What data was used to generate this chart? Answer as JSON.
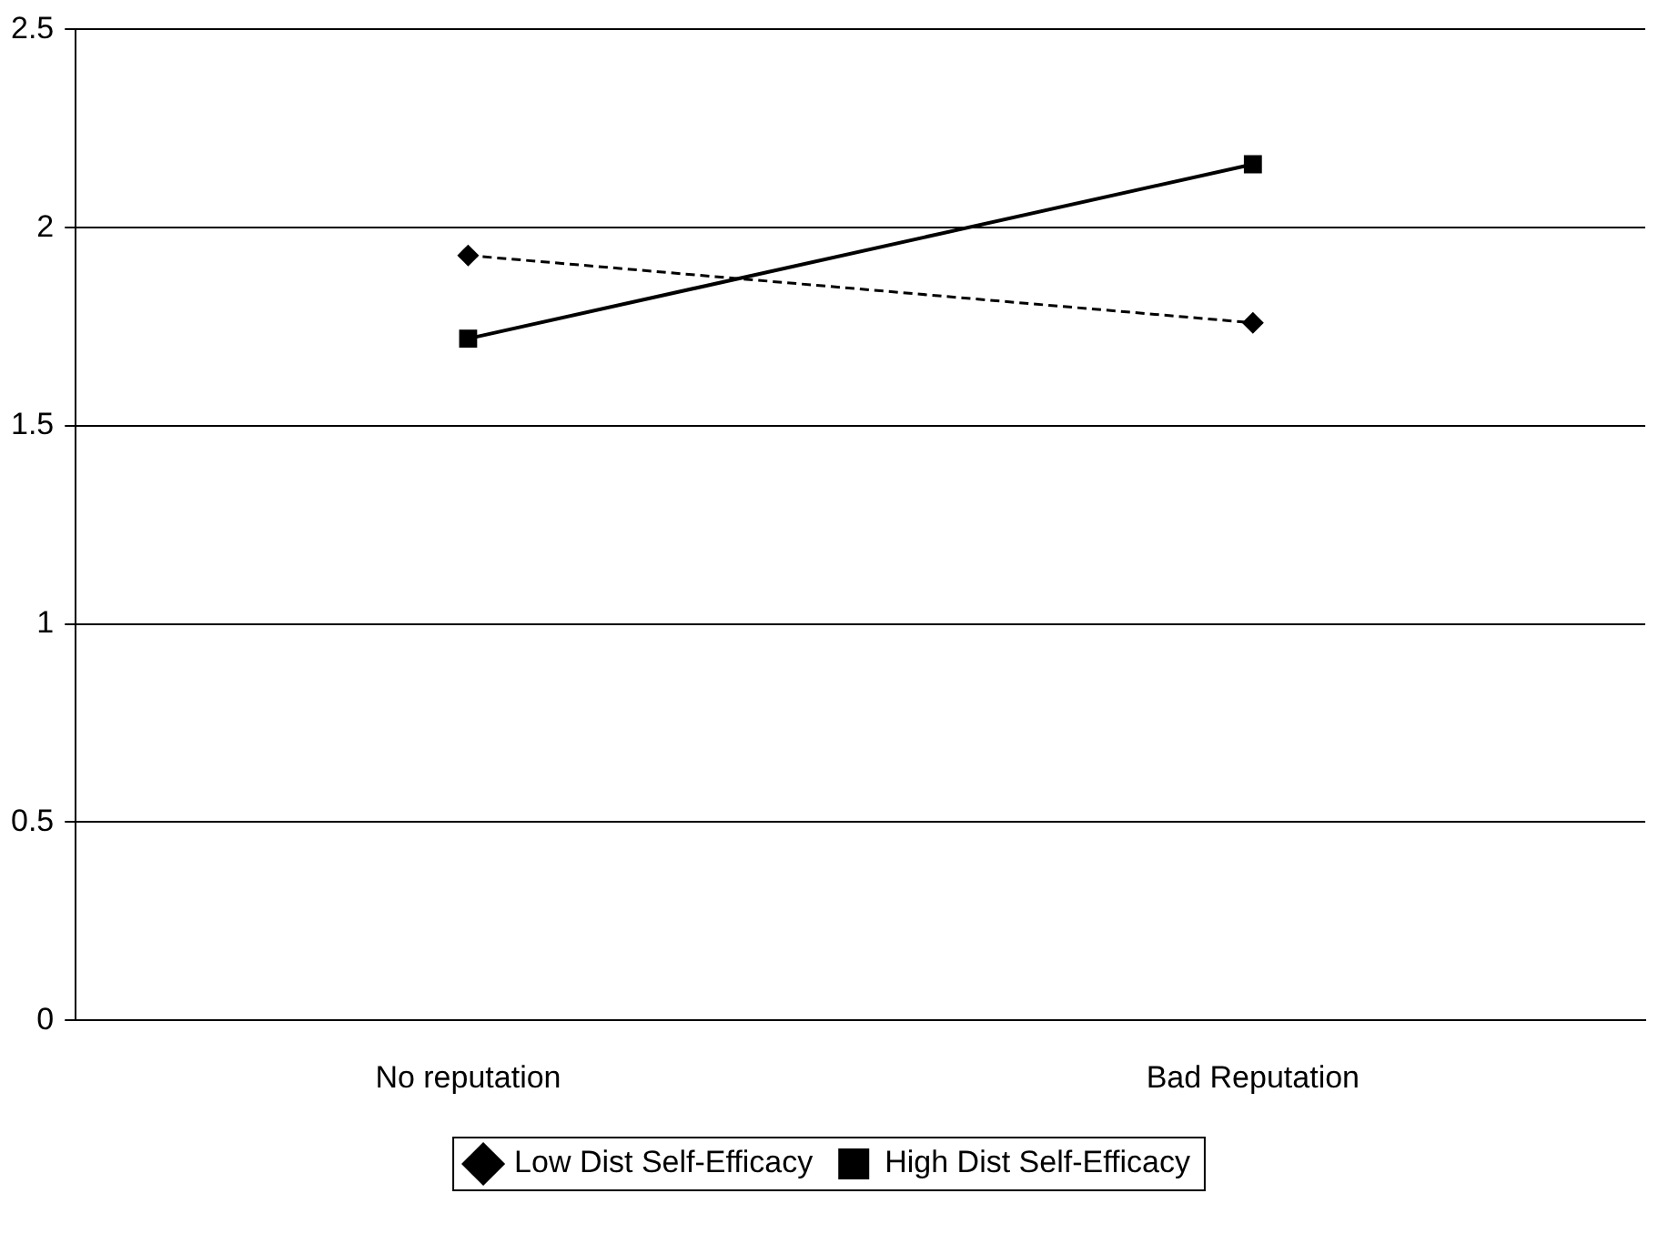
{
  "chart_data": {
    "type": "line",
    "categories": [
      "No reputation",
      "Bad Reputation"
    ],
    "series": [
      {
        "name": "Low Dist Self-Efficacy",
        "color": "#000000",
        "values": [
          1.93,
          1.76
        ],
        "marker": "diamond",
        "line_style": "dashed"
      },
      {
        "name": "High Dist Self-Efficacy",
        "color": "#000000",
        "values": [
          1.72,
          2.16
        ],
        "marker": "square",
        "line_style": "solid"
      }
    ],
    "ylim": [
      0,
      2.5
    ],
    "yticks": [
      0,
      0.5,
      1,
      1.5,
      2,
      2.5
    ],
    "grid": "y",
    "legend": "bottom"
  }
}
